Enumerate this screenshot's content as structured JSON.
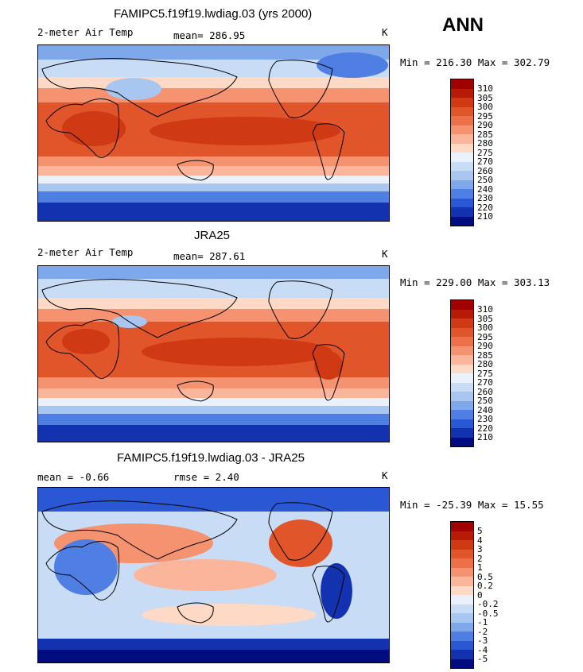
{
  "season": "ANN",
  "panels": [
    {
      "title": "FAMIPC5.f19f19.lwdiag.03 (yrs 2000)",
      "variable": "2-meter Air Temp",
      "stat_text": "mean= 286.95",
      "units": "K",
      "minmax_text": "Min = 216.30 Max = 302.79",
      "colorbar": {
        "labels": [
          "310",
          "305",
          "300",
          "295",
          "290",
          "285",
          "280",
          "275",
          "270",
          "260",
          "250",
          "240",
          "230",
          "220",
          "210"
        ],
        "colors": [
          "#a00000",
          "#b81a08",
          "#cf3a14",
          "#e0552a",
          "#ec7148",
          "#f59370",
          "#fab59a",
          "#fdd9c6",
          "#eaf1fb",
          "#c9dcf6",
          "#a9c6f0",
          "#7ea8ea",
          "#4f7fe2",
          "#2a58d4",
          "#1232b0",
          "#000c80"
        ]
      }
    },
    {
      "title": "JRA25",
      "variable": "2-meter Air Temp",
      "stat_text": "mean= 287.61",
      "units": "K",
      "minmax_text": "Min = 229.00 Max = 303.13",
      "colorbar": {
        "labels": [
          "310",
          "305",
          "300",
          "295",
          "290",
          "285",
          "280",
          "275",
          "270",
          "260",
          "250",
          "240",
          "230",
          "220",
          "210"
        ],
        "colors": [
          "#a00000",
          "#b81a08",
          "#cf3a14",
          "#e0552a",
          "#ec7148",
          "#f59370",
          "#fab59a",
          "#fdd9c6",
          "#eaf1fb",
          "#c9dcf6",
          "#a9c6f0",
          "#7ea8ea",
          "#4f7fe2",
          "#2a58d4",
          "#1232b0",
          "#000c80"
        ]
      }
    },
    {
      "title": "FAMIPC5.f19f19.lwdiag.03 - JRA25",
      "stat_text": "mean =   -0.66",
      "rmse_text": "rmse =    2.40",
      "units": "K",
      "minmax_text": "Min = -25.39 Max =  15.55",
      "colorbar": {
        "labels": [
          "5",
          "4",
          "3",
          "2",
          "1",
          "0.5",
          "0.2",
          "0",
          "-0.2",
          "-0.5",
          "-1",
          "-2",
          "-3",
          "-4",
          "-5"
        ],
        "colors": [
          "#a00000",
          "#b81a08",
          "#cf3a14",
          "#e0552a",
          "#ec7148",
          "#f59370",
          "#fab59a",
          "#fdd9c6",
          "#eaf1fb",
          "#c9dcf6",
          "#a9c6f0",
          "#7ea8ea",
          "#4f7fe2",
          "#2a58d4",
          "#1232b0",
          "#000c80"
        ]
      }
    }
  ]
}
